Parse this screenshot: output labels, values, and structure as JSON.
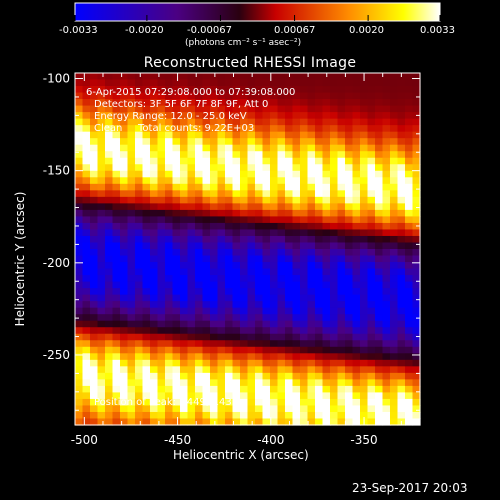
{
  "window": {
    "title": "Reconstructed RHESSI Image"
  },
  "colorbar": {
    "ticks": [
      "-0.0033",
      "-0.0020",
      "-0.00067",
      "0.00067",
      "0.0020",
      "0.0033"
    ],
    "unit_label": "(photons cm⁻² s⁻¹ asec⁻²)",
    "colors": [
      "#0000ff",
      "#4b0082",
      "#000000",
      "#ff0000",
      "#ff8c00",
      "#ffff00",
      "#ffffff"
    ]
  },
  "annotations": {
    "time_range": "6-Apr-2015 07:29:08.000 to 07:39:08.000",
    "detectors": "Detectors: 3F 5F 6F 7F 8F 9F, Att 0",
    "energy": "Energy Range: 12.0 - 25.0 keV",
    "clean": "Clean",
    "counts": "Total counts: 9.22E+03",
    "peak": "Position of Peak: [-449,-143]"
  },
  "chart_data": {
    "type": "heatmap",
    "title": "Reconstructed RHESSI Image",
    "xlabel": "Heliocentric X (arcsec)",
    "ylabel": "Heliocentric Y (arcsec)",
    "xlim": [
      -505,
      -320
    ],
    "ylim": [
      -288,
      -97
    ],
    "xticks": [
      -500,
      -450,
      -400,
      -350
    ],
    "yticks": [
      -100,
      -150,
      -200,
      -250
    ],
    "colormap_range": [
      -0.0033,
      0.0033
    ],
    "bands": [
      {
        "name": "",
        "y_center": -150,
        "slope_per_arcsec": -0.12,
        "amplitude": 0.0033
      },
      {
        "name": "",
        "y_center": -272,
        "slope_per_arcsec": -0.12,
        "amplitude": 0.0033
      },
      {
        "name": "",
        "y_center": -210,
        "slope_per_arcsec": -0.12,
        "amplitude": -0.0033
      }
    ],
    "peak_position": [
      -449,
      -143
    ]
  },
  "footer": {
    "timestamp": "23-Sep-2017 20:03"
  }
}
